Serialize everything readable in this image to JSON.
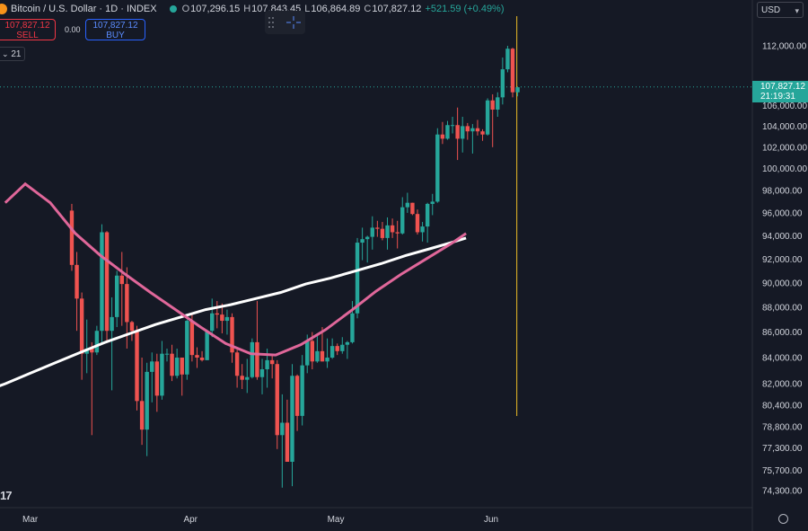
{
  "instrument": {
    "title": "Bitcoin / U.S. Dollar · 1D · INDEX",
    "open_label": "O",
    "open": "107,296.15",
    "high_label": "H",
    "high": "107,843.45",
    "low_label": "L",
    "low": "106,864.89",
    "close_label": "C",
    "close": "107,827.12",
    "change": "+521.59 (+0.49%)"
  },
  "trade": {
    "sell_price": "107,827.12",
    "sell_label": "SELL",
    "spread": "0.00",
    "buy_price": "107,827.12",
    "buy_label": "BUY"
  },
  "indicators": {
    "collapse_label": "21"
  },
  "toolbar": {
    "currency": "USD",
    "currency_caret": "▾"
  },
  "price_tag": {
    "price": "107,827.12",
    "countdown": "21:19:31"
  },
  "branding": {
    "logo_text": "17"
  },
  "colors": {
    "background": "#151925",
    "up": "#26a69a",
    "down": "#ef5350",
    "sma_short": "#e0679a",
    "sma_long": "#ffffff",
    "vline": "#c9a227"
  },
  "chart_data": {
    "type": "candlestick",
    "y_ticks": [
      "112,000.00",
      "106,000.00",
      "104,000.00",
      "102,000.00",
      "100,000.00",
      "98,000.00",
      "96,000.00",
      "94,000.00",
      "92,000.00",
      "90,000.00",
      "88,000.00",
      "86,000.00",
      "84,000.00",
      "82,000.00",
      "80,400.00",
      "78,800.00",
      "77,300.00",
      "75,700.00",
      "74,300.00"
    ],
    "x_ticks": [
      "Mar",
      "Apr",
      "May",
      "Jun"
    ],
    "y_scale": "log",
    "candles": [
      [
        "Feb 24",
        96200,
        96800,
        91000,
        91500
      ],
      [
        "Feb 25",
        91500,
        92600,
        86100,
        88700
      ],
      [
        "Feb 26",
        88700,
        89200,
        82300,
        84300
      ],
      [
        "Feb 27",
        84300,
        87000,
        82800,
        84700
      ],
      [
        "Feb 28",
        84700,
        85200,
        78200,
        84400
      ],
      [
        "Mar 1",
        84400,
        86500,
        84200,
        86100
      ],
      [
        "Mar 2",
        86100,
        95000,
        85100,
        94300
      ],
      [
        "Mar 3",
        94300,
        94400,
        85300,
        86100
      ],
      [
        "Mar 4",
        86100,
        88800,
        81500,
        87200
      ],
      [
        "Mar 5",
        87200,
        91000,
        86400,
        90600
      ],
      [
        "Mar 6",
        90600,
        92600,
        86500,
        89900
      ],
      [
        "Mar 7",
        89900,
        91300,
        84700,
        86800
      ],
      [
        "Mar 8",
        86800,
        86900,
        85300,
        86100
      ],
      [
        "Mar 9",
        86100,
        86500,
        80000,
        80700
      ],
      [
        "Mar 10",
        80700,
        84000,
        77500,
        78600
      ],
      [
        "Mar 11",
        78600,
        83600,
        76700,
        82900
      ],
      [
        "Mar 12",
        82900,
        84400,
        80600,
        83700
      ],
      [
        "Mar 13",
        83700,
        84300,
        79900,
        81100
      ],
      [
        "Mar 14",
        81100,
        85300,
        80800,
        84300
      ],
      [
        "Mar 15",
        84300,
        84700,
        83700,
        84300
      ],
      [
        "Mar 16",
        84300,
        85000,
        82200,
        82600
      ],
      [
        "Mar 17",
        82600,
        84700,
        82400,
        84000
      ],
      [
        "Mar 18",
        84000,
        84000,
        81100,
        82700
      ],
      [
        "Mar 19",
        82700,
        87000,
        82300,
        86900
      ],
      [
        "Mar 20",
        86900,
        87500,
        83700,
        84200
      ],
      [
        "Mar 21",
        84200,
        84800,
        83200,
        84000
      ],
      [
        "Mar 22",
        84000,
        84500,
        83700,
        83800
      ],
      [
        "Mar 23",
        83800,
        86200,
        83800,
        86100
      ],
      [
        "Mar 24",
        86100,
        88700,
        85600,
        87500
      ],
      [
        "Mar 25",
        87500,
        88500,
        86300,
        87400
      ],
      [
        "Mar 26",
        87400,
        88300,
        85900,
        86900
      ],
      [
        "Mar 27",
        86900,
        87800,
        85800,
        87200
      ],
      [
        "Mar 28",
        87200,
        87500,
        83600,
        84400
      ],
      [
        "Mar 29",
        84400,
        84600,
        81700,
        82600
      ],
      [
        "Mar 30",
        82600,
        83500,
        81600,
        82300
      ],
      [
        "Mar 31",
        82300,
        83900,
        81300,
        82500
      ],
      [
        "Apr 1",
        82500,
        85500,
        82400,
        85200
      ],
      [
        "Apr 2",
        85200,
        88500,
        82300,
        82500
      ],
      [
        "Apr 3",
        82500,
        83900,
        81200,
        83100
      ],
      [
        "Apr 4",
        83100,
        84700,
        81700,
        83800
      ],
      [
        "Apr 5",
        83800,
        84200,
        82400,
        83500
      ],
      [
        "Apr 6",
        83500,
        83800,
        77200,
        78200
      ],
      [
        "Apr 7",
        78200,
        81200,
        74500,
        79100
      ],
      [
        "Apr 8",
        79100,
        80800,
        76300,
        76300
      ],
      [
        "Apr 9",
        76300,
        83500,
        74600,
        82600
      ],
      [
        "Apr 10",
        82600,
        82700,
        78500,
        79600
      ],
      [
        "Apr 11",
        79600,
        84200,
        78900,
        83400
      ],
      [
        "Apr 12",
        83400,
        85800,
        82800,
        85300
      ],
      [
        "Apr 13",
        85300,
        86000,
        83100,
        83700
      ],
      [
        "Apr 14",
        83700,
        85800,
        83600,
        84500
      ],
      [
        "Apr 15",
        84500,
        86400,
        83700,
        83700
      ],
      [
        "Apr 16",
        83700,
        85500,
        83200,
        84000
      ],
      [
        "Apr 17",
        84000,
        85500,
        83900,
        84900
      ],
      [
        "Apr 18",
        84900,
        85100,
        84200,
        84500
      ],
      [
        "Apr 19",
        84500,
        85600,
        84300,
        85000
      ],
      [
        "Apr 20",
        85000,
        85300,
        83900,
        85200
      ],
      [
        "Apr 21",
        85200,
        88500,
        85100,
        87500
      ],
      [
        "Apr 22",
        87500,
        93800,
        87100,
        93400
      ],
      [
        "Apr 23",
        93400,
        94700,
        91900,
        93700
      ],
      [
        "Apr 24",
        93700,
        94000,
        91700,
        93900
      ],
      [
        "Apr 25",
        93900,
        95700,
        92800,
        94700
      ],
      [
        "Apr 26",
        94700,
        95300,
        93900,
        94600
      ],
      [
        "Apr 27",
        94600,
        95200,
        93600,
        93800
      ],
      [
        "Apr 28",
        93800,
        95600,
        92800,
        94900
      ],
      [
        "Apr 29",
        94900,
        95500,
        93800,
        94300
      ],
      [
        "Apr 30",
        94300,
        95300,
        92900,
        94200
      ],
      [
        "May 1",
        94200,
        97400,
        94100,
        96500
      ],
      [
        "May 2",
        96500,
        97800,
        96000,
        96900
      ],
      [
        "May 3",
        96900,
        96900,
        95800,
        95900
      ],
      [
        "May 4",
        95900,
        96300,
        94100,
        94300
      ],
      [
        "May 5",
        94300,
        95200,
        93500,
        94800
      ],
      [
        "May 6",
        94800,
        96900,
        93400,
        96800
      ],
      [
        "May 7",
        96800,
        97700,
        95800,
        97000
      ],
      [
        "May 8",
        97000,
        103800,
        96900,
        103200
      ],
      [
        "May 9",
        103200,
        104400,
        102300,
        102800
      ],
      [
        "May 10",
        102800,
        104500,
        102700,
        104100
      ],
      [
        "May 11",
        104100,
        104900,
        103300,
        104100
      ],
      [
        "May 12",
        104100,
        105800,
        100800,
        102800
      ],
      [
        "May 13",
        102800,
        104900,
        101500,
        104000
      ],
      [
        "May 14",
        104000,
        104300,
        102700,
        103500
      ],
      [
        "May 15",
        103500,
        104200,
        101400,
        103800
      ],
      [
        "May 16",
        103800,
        104600,
        103100,
        103500
      ],
      [
        "May 17",
        103500,
        103700,
        102600,
        103200
      ],
      [
        "May 18",
        103200,
        106700,
        103100,
        106500
      ],
      [
        "May 19",
        106500,
        107100,
        102000,
        105600
      ],
      [
        "May 20",
        105600,
        107300,
        104900,
        106800
      ],
      [
        "May 21",
        106800,
        110800,
        106100,
        109600
      ],
      [
        "May 22",
        109600,
        112000,
        109300,
        111700
      ],
      [
        "May 23",
        111700,
        111800,
        106800,
        107300
      ],
      [
        "May 24",
        107300,
        107800,
        106900,
        107800
      ]
    ],
    "sma_short": [
      [
        0,
        96900
      ],
      [
        4,
        98600
      ],
      [
        9,
        96900
      ],
      [
        14,
        94200
      ],
      [
        19,
        92300
      ],
      [
        24,
        90700
      ],
      [
        29,
        89200
      ],
      [
        34,
        87800
      ],
      [
        39,
        86400
      ],
      [
        44,
        85100
      ],
      [
        49,
        84300
      ],
      [
        54,
        84200
      ],
      [
        59,
        85000
      ],
      [
        64,
        86200
      ],
      [
        69,
        87700
      ],
      [
        74,
        89300
      ],
      [
        79,
        90700
      ],
      [
        84,
        92000
      ],
      [
        89,
        93300
      ],
      [
        92,
        94200
      ]
    ],
    "sma_long": [
      [
        -5,
        81300
      ],
      [
        0,
        82000
      ],
      [
        5,
        82800
      ],
      [
        10,
        83600
      ],
      [
        15,
        84400
      ],
      [
        20,
        85200
      ],
      [
        25,
        85900
      ],
      [
        30,
        86600
      ],
      [
        35,
        87200
      ],
      [
        40,
        87800
      ],
      [
        45,
        88200
      ],
      [
        50,
        88700
      ],
      [
        55,
        89200
      ],
      [
        60,
        89900
      ],
      [
        65,
        90400
      ],
      [
        70,
        91000
      ],
      [
        75,
        91600
      ],
      [
        80,
        92300
      ],
      [
        85,
        92900
      ],
      [
        89,
        93400
      ],
      [
        92,
        93800
      ]
    ],
    "vertical_marker_index": 89,
    "current_price": 107827.12
  }
}
